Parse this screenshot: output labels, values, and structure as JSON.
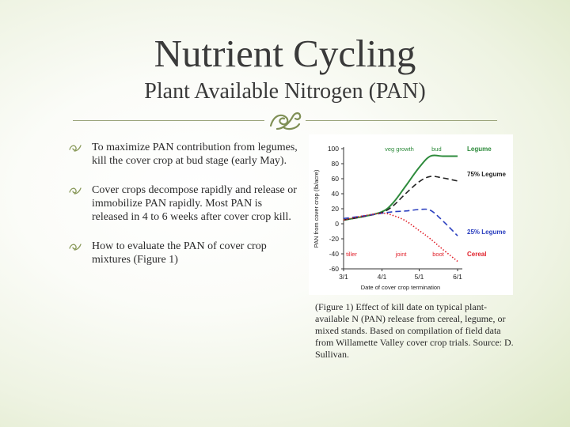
{
  "slide": {
    "title": "Nutrient Cycling",
    "subtitle": "Plant Available Nitrogen (PAN)"
  },
  "bullets": [
    {
      "text": " To maximize PAN contribution from legumes, kill the cover crop at bud stage (early May)."
    },
    {
      "text": "Cover crops decompose rapidly and release or immobilize PAN rapidly. Most PAN is released in 4 to 6 weeks after cover crop kill."
    },
    {
      "text": "How to evaluate the PAN of cover crop mixtures (Figure 1)"
    }
  ],
  "figure": {
    "caption": "(Figure 1) Effect of kill date on typical plant-available N (PAN) release from cereal, legume, or mixed stands. Based on compilation of field data from Willamette Valley cover crop trials. Source: D. Sullivan."
  },
  "colors": {
    "text": "#3a3a3a",
    "bullet_icon": "#8a9a5b",
    "legume": "#2e8b3c",
    "legume_75": "#222222",
    "legume_25": "#2b3fbf",
    "cereal": "#e0202a"
  },
  "chart_data": {
    "type": "line",
    "xlabel": "Date of cover crop termination",
    "ylabel": "PAN from cover crop (lb/acre)",
    "x_ticks": [
      "3/1",
      "4/1",
      "5/1",
      "6/1"
    ],
    "xlim": [
      "3/1",
      "6/1"
    ],
    "y_ticks": [
      100,
      80,
      60,
      40,
      20,
      0,
      -20,
      -40,
      -60
    ],
    "ylim": [
      -60,
      100
    ],
    "grid": false,
    "stage_labels": {
      "top": [
        {
          "text": "veg growth",
          "x": "4/15",
          "y": 100
        },
        {
          "text": "bud",
          "x": "5/15",
          "y": 100
        }
      ],
      "bottom": [
        {
          "text": "tiller",
          "x": "3/1",
          "y": -40
        },
        {
          "text": "joint",
          "x": "4/10",
          "y": -40
        },
        {
          "text": "boot",
          "x": "5/10",
          "y": -40
        }
      ]
    },
    "series": [
      {
        "name": "Legume",
        "style": "solid",
        "color": "#2e8b3c",
        "x": [
          "3/1",
          "3/15",
          "4/1",
          "4/10",
          "4/20",
          "5/1",
          "5/10",
          "5/20",
          "6/1"
        ],
        "y": [
          5,
          9,
          16,
          28,
          50,
          75,
          90,
          90,
          90
        ]
      },
      {
        "name": "75% Legume",
        "style": "dashed",
        "color": "#222222",
        "x": [
          "3/1",
          "3/15",
          "4/1",
          "4/10",
          "4/20",
          "5/1",
          "5/10",
          "5/20",
          "6/1"
        ],
        "y": [
          5,
          9,
          15,
          24,
          40,
          56,
          63,
          61,
          57
        ]
      },
      {
        "name": "25% Legume",
        "style": "dashed",
        "color": "#2b3fbf",
        "x": [
          "3/1",
          "3/15",
          "4/1",
          "4/10",
          "4/20",
          "5/1",
          "5/10",
          "5/20",
          "6/1"
        ],
        "y": [
          7,
          10,
          14,
          16,
          17,
          19,
          18,
          4,
          -16
        ]
      },
      {
        "name": "Cereal",
        "style": "dotted",
        "color": "#e0202a",
        "x": [
          "3/1",
          "3/15",
          "4/1",
          "4/10",
          "4/20",
          "5/1",
          "5/10",
          "5/20",
          "6/1"
        ],
        "y": [
          5,
          10,
          14,
          11,
          4,
          -9,
          -20,
          -34,
          -50
        ]
      }
    ]
  }
}
